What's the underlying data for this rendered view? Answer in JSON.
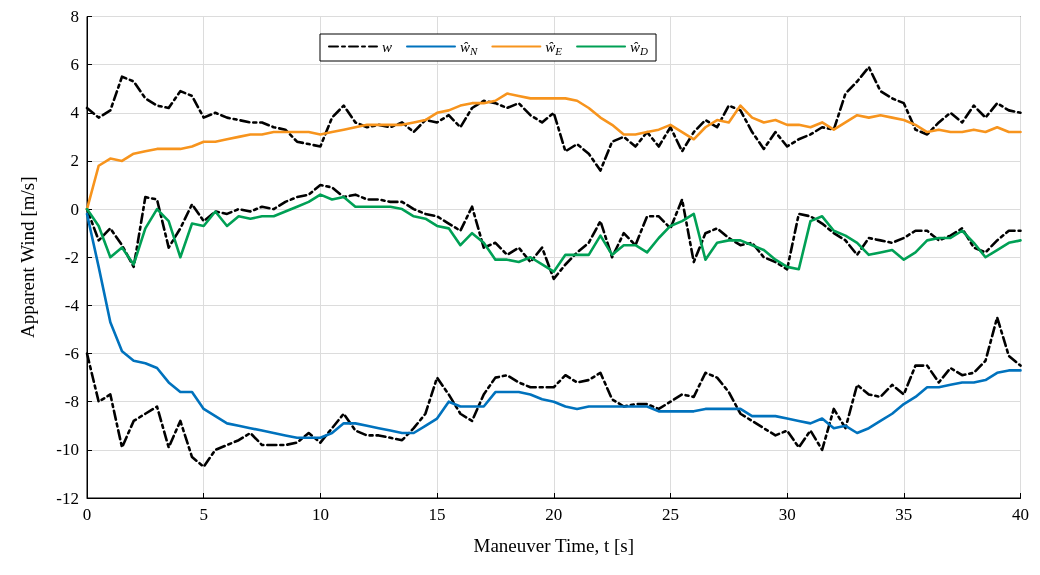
{
  "chart_data": {
    "type": "line",
    "xlabel": "Maneuver Time, t [s]",
    "ylabel": "Apparent Wind [m/s]",
    "x": [
      0,
      0.5,
      1,
      1.5,
      2,
      2.5,
      3,
      3.5,
      4,
      4.5,
      5,
      5.5,
      6,
      6.5,
      7,
      7.5,
      8,
      8.5,
      9,
      9.5,
      10,
      10.5,
      11,
      11.5,
      12,
      12.5,
      13,
      13.5,
      14,
      14.5,
      15,
      15.5,
      16,
      16.5,
      17,
      17.5,
      18,
      18.5,
      19,
      19.5,
      20,
      20.5,
      21,
      21.5,
      22,
      22.5,
      23,
      23.5,
      24,
      24.5,
      25,
      25.5,
      26,
      26.5,
      27,
      27.5,
      28,
      28.5,
      29,
      29.5,
      30,
      30.5,
      31,
      31.5,
      32,
      32.5,
      33,
      33.5,
      34,
      34.5,
      35,
      35.5,
      36,
      36.5,
      37,
      37.5,
      38,
      38.5,
      39,
      39.5,
      40
    ],
    "series": [
      {
        "name": "w",
        "color": "#000000",
        "line_style": "dashed",
        "values": [
          -6.0,
          -8.0,
          -7.7,
          -9.9,
          -8.8,
          -8.5,
          -8.2,
          -9.9,
          -8.8,
          -10.3,
          -10.7,
          -10.0,
          -9.8,
          -9.6,
          -9.3,
          -9.8,
          -9.8,
          -9.8,
          -9.7,
          -9.3,
          -9.7,
          -9.1,
          -8.5,
          -9.2,
          -9.4,
          -9.4,
          -9.5,
          -9.6,
          -9.1,
          -8.5,
          -7.0,
          -7.7,
          -8.5,
          -8.8,
          -7.7,
          -7.0,
          -6.9,
          -7.2,
          -7.4,
          -7.4,
          -7.4,
          -6.9,
          -7.2,
          -7.1,
          -6.8,
          -7.9,
          -8.2,
          -8.1,
          -8.1,
          -8.3,
          -8.0,
          -7.7,
          -7.8,
          -6.8,
          -7.0,
          -7.6,
          -8.5,
          -8.8,
          -9.1,
          -9.4,
          -9.2,
          -9.9,
          -9.2,
          -10.0,
          -8.3,
          -9.1,
          -7.3,
          -7.7,
          -7.8,
          -7.3,
          -7.7,
          -6.5,
          -6.5,
          -7.2,
          -6.6,
          -6.9,
          -6.8,
          -6.3,
          -4.5,
          -6.1,
          -6.5
        ]
      },
      {
        "color": "#000000",
        "line_style": "dashed",
        "values": [
          4.2,
          3.8,
          4.1,
          5.5,
          5.3,
          4.6,
          4.3,
          4.2,
          4.9,
          4.7,
          3.8,
          4.0,
          3.8,
          3.7,
          3.6,
          3.6,
          3.4,
          3.3,
          2.8,
          2.7,
          2.6,
          3.8,
          4.3,
          3.6,
          3.4,
          3.5,
          3.4,
          3.6,
          3.2,
          3.7,
          3.6,
          3.9,
          3.4,
          4.2,
          4.5,
          4.4,
          4.2,
          4.4,
          3.9,
          3.6,
          4.0,
          2.4,
          2.7,
          2.3,
          1.6,
          2.8,
          3.0,
          2.6,
          3.2,
          2.6,
          3.4,
          2.4,
          3.2,
          3.7,
          3.4,
          4.3,
          4.1,
          3.2,
          2.5,
          3.2,
          2.6,
          2.9,
          3.1,
          3.4,
          3.3,
          4.8,
          5.3,
          5.9,
          4.9,
          4.6,
          4.4,
          3.3,
          3.1,
          3.6,
          4.0,
          3.6,
          4.3,
          3.8,
          4.4,
          4.1,
          4.0
        ]
      },
      {
        "color": "#000000",
        "line_style": "dashed",
        "values": [
          0,
          -1.3,
          -0.8,
          -1.5,
          -2.4,
          0.5,
          0.4,
          -1.6,
          -0.8,
          0.2,
          -0.5,
          -0.1,
          -0.2,
          0.0,
          -0.1,
          0.1,
          0.0,
          0.3,
          0.5,
          0.6,
          1.0,
          0.9,
          0.5,
          0.6,
          0.4,
          0.4,
          0.3,
          0.3,
          0.0,
          -0.2,
          -0.3,
          -0.6,
          -0.9,
          0.1,
          -1.6,
          -1.4,
          -1.9,
          -1.6,
          -2.2,
          -1.6,
          -2.9,
          -2.3,
          -1.8,
          -1.4,
          -0.5,
          -2.0,
          -1.0,
          -1.5,
          -0.3,
          -0.3,
          -0.8,
          0.4,
          -2.2,
          -1.0,
          -0.8,
          -1.2,
          -1.5,
          -1.4,
          -2.0,
          -2.2,
          -2.5,
          -0.2,
          -0.3,
          -0.6,
          -1.0,
          -1.3,
          -1.9,
          -1.2,
          -1.3,
          -1.4,
          -1.2,
          -0.9,
          -0.9,
          -1.3,
          -1.1,
          -0.8,
          -1.6,
          -1.8,
          -1.3,
          -0.9,
          -0.9
        ]
      },
      {
        "name": "ŵ$_{N}$",
        "color": "#0072bd",
        "values": [
          -0.2,
          -2.4,
          -4.7,
          -5.9,
          -6.3,
          -6.4,
          -6.6,
          -7.2,
          -7.6,
          -7.6,
          -8.3,
          -8.6,
          -8.9,
          -9.0,
          -9.1,
          -9.2,
          -9.3,
          -9.4,
          -9.5,
          -9.5,
          -9.5,
          -9.3,
          -8.9,
          -8.9,
          -9.0,
          -9.1,
          -9.2,
          -9.3,
          -9.3,
          -9.0,
          -8.7,
          -8.0,
          -8.2,
          -8.2,
          -8.2,
          -7.6,
          -7.6,
          -7.6,
          -7.7,
          -7.9,
          -8.0,
          -8.2,
          -8.3,
          -8.2,
          -8.2,
          -8.2,
          -8.2,
          -8.2,
          -8.2,
          -8.4,
          -8.4,
          -8.4,
          -8.4,
          -8.3,
          -8.3,
          -8.3,
          -8.3,
          -8.6,
          -8.6,
          -8.6,
          -8.7,
          -8.8,
          -8.9,
          -8.7,
          -9.1,
          -9.0,
          -9.3,
          -9.1,
          -8.8,
          -8.5,
          -8.1,
          -7.8,
          -7.4,
          -7.4,
          -7.3,
          -7.2,
          -7.2,
          -7.1,
          -6.8,
          -6.7,
          -6.7
        ]
      },
      {
        "name": "ŵ$_{E}$",
        "color": "#f7941d",
        "values": [
          0,
          1.8,
          2.1,
          2.0,
          2.3,
          2.4,
          2.5,
          2.5,
          2.5,
          2.6,
          2.8,
          2.8,
          2.9,
          3.0,
          3.1,
          3.1,
          3.2,
          3.2,
          3.2,
          3.2,
          3.1,
          3.2,
          3.3,
          3.4,
          3.5,
          3.5,
          3.5,
          3.5,
          3.6,
          3.7,
          4.0,
          4.1,
          4.3,
          4.4,
          4.4,
          4.5,
          4.8,
          4.7,
          4.6,
          4.6,
          4.6,
          4.6,
          4.5,
          4.2,
          3.8,
          3.5,
          3.1,
          3.1,
          3.2,
          3.3,
          3.5,
          3.2,
          2.9,
          3.4,
          3.7,
          3.6,
          4.3,
          3.8,
          3.6,
          3.7,
          3.5,
          3.5,
          3.4,
          3.6,
          3.3,
          3.6,
          3.9,
          3.8,
          3.9,
          3.8,
          3.7,
          3.5,
          3.2,
          3.3,
          3.2,
          3.2,
          3.3,
          3.2,
          3.4,
          3.2,
          3.2
        ]
      },
      {
        "name": "ŵ$_{D}$",
        "color": "#00a055",
        "values": [
          0,
          -0.7,
          -2.0,
          -1.6,
          -2.3,
          -0.8,
          0.0,
          -0.5,
          -2.0,
          -0.6,
          -0.7,
          -0.1,
          -0.7,
          -0.3,
          -0.4,
          -0.3,
          -0.3,
          -0.1,
          0.1,
          0.3,
          0.6,
          0.4,
          0.5,
          0.1,
          0.1,
          0.1,
          0.1,
          0.0,
          -0.3,
          -0.4,
          -0.7,
          -0.8,
          -1.5,
          -1.0,
          -1.4,
          -2.1,
          -2.1,
          -2.2,
          -2.0,
          -2.3,
          -2.6,
          -1.9,
          -1.9,
          -1.9,
          -1.1,
          -1.9,
          -1.5,
          -1.5,
          -1.8,
          -1.2,
          -0.7,
          -0.5,
          -0.2,
          -2.1,
          -1.4,
          -1.3,
          -1.3,
          -1.5,
          -1.7,
          -2.1,
          -2.4,
          -2.5,
          -0.5,
          -0.3,
          -0.9,
          -1.1,
          -1.4,
          -1.9,
          -1.8,
          -1.7,
          -2.1,
          -1.8,
          -1.3,
          -1.2,
          -1.2,
          -0.9,
          -1.4,
          -2.0,
          -1.7,
          -1.4,
          -1.3
        ]
      }
    ],
    "xlim": [
      0,
      40
    ],
    "xticks": [
      0,
      5,
      10,
      15,
      20,
      25,
      30,
      35,
      40
    ],
    "ylim": [
      -12,
      8
    ],
    "yticks": [
      -12,
      -10,
      -8,
      -6,
      -4,
      -2,
      0,
      2,
      4,
      6,
      8
    ],
    "grid": true,
    "legend": "top",
    "marker": "none",
    "line_style": "solid"
  }
}
